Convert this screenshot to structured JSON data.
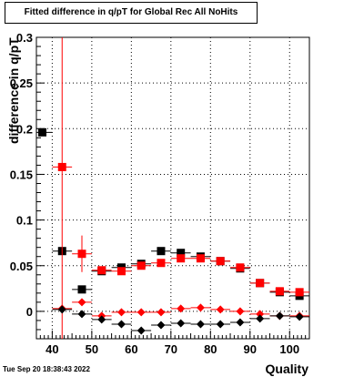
{
  "chart_data": {
    "type": "scatter",
    "title": "Fitted difference in q/pT for Global Rec All NoHits",
    "xlabel": "Quality",
    "ylabel": "difference in q/pT",
    "timestamp": "Tue Sep 20 18:38:43 2022",
    "xlim": [
      36,
      105
    ],
    "ylim": [
      -0.03,
      0.3
    ],
    "grid": true,
    "x_ticks": [
      40,
      50,
      60,
      70,
      80,
      90,
      100
    ],
    "x_tick_labels": [
      "40",
      "50",
      "60",
      "70",
      "80",
      "90",
      "100"
    ],
    "y_ticks": [
      0,
      0.05,
      0.1,
      0.15,
      0.2,
      0.25,
      0.3
    ],
    "y_tick_labels": [
      "0",
      "0.05",
      "0.1",
      "0.15",
      "0.2",
      "0.25",
      "0.3"
    ],
    "x_bin_half_width": 2.5,
    "series": [
      {
        "color": "#000000",
        "marker": "square",
        "points": [
          {
            "x": 37.5,
            "y": 0.196
          },
          {
            "x": 42.5,
            "y": 0.066
          },
          {
            "x": 47.5,
            "y": 0.024
          },
          {
            "x": 52.5,
            "y": 0.044
          },
          {
            "x": 57.5,
            "y": 0.048
          },
          {
            "x": 62.5,
            "y": 0.052
          },
          {
            "x": 67.5,
            "y": 0.066
          },
          {
            "x": 72.5,
            "y": 0.064
          },
          {
            "x": 77.5,
            "y": 0.06
          },
          {
            "x": 82.5,
            "y": 0.055
          },
          {
            "x": 87.5,
            "y": 0.047
          },
          {
            "x": 92.5,
            "y": 0.031
          },
          {
            "x": 97.5,
            "y": 0.021
          },
          {
            "x": 102.5,
            "y": 0.017
          }
        ]
      },
      {
        "color": "#ff0000",
        "marker": "square",
        "points": [
          {
            "x": 42.5,
            "y": 0.158,
            "err": 0.3
          },
          {
            "x": 47.5,
            "y": 0.063,
            "err": 0.02
          },
          {
            "x": 52.5,
            "y": 0.045
          },
          {
            "x": 57.5,
            "y": 0.044
          },
          {
            "x": 62.5,
            "y": 0.05
          },
          {
            "x": 67.5,
            "y": 0.053
          },
          {
            "x": 72.5,
            "y": 0.058
          },
          {
            "x": 77.5,
            "y": 0.058
          },
          {
            "x": 82.5,
            "y": 0.055
          },
          {
            "x": 87.5,
            "y": 0.048
          },
          {
            "x": 92.5,
            "y": 0.031
          },
          {
            "x": 97.5,
            "y": 0.022
          },
          {
            "x": 102.5,
            "y": 0.021
          }
        ]
      },
      {
        "color": "#ff0000",
        "marker": "diamond",
        "points": [
          {
            "x": 42.5,
            "y": 0.003
          },
          {
            "x": 47.5,
            "y": 0.01
          },
          {
            "x": 52.5,
            "y": -0.005
          },
          {
            "x": 57.5,
            "y": -0.001
          },
          {
            "x": 62.5,
            "y": -0.001
          },
          {
            "x": 67.5,
            "y": -0.001
          },
          {
            "x": 72.5,
            "y": 0.003
          },
          {
            "x": 77.5,
            "y": 0.004
          },
          {
            "x": 82.5,
            "y": 0.002
          },
          {
            "x": 87.5,
            "y": 0.0
          },
          {
            "x": 92.5,
            "y": -0.003
          },
          {
            "x": 97.5,
            "y": -0.005
          },
          {
            "x": 102.5,
            "y": -0.005
          }
        ]
      },
      {
        "color": "#000000",
        "marker": "diamond",
        "points": [
          {
            "x": 42.5,
            "y": 0.002
          },
          {
            "x": 47.5,
            "y": -0.003
          },
          {
            "x": 52.5,
            "y": -0.009
          },
          {
            "x": 57.5,
            "y": -0.014
          },
          {
            "x": 62.5,
            "y": -0.021
          },
          {
            "x": 67.5,
            "y": -0.015
          },
          {
            "x": 72.5,
            "y": -0.013
          },
          {
            "x": 77.5,
            "y": -0.014
          },
          {
            "x": 82.5,
            "y": -0.014
          },
          {
            "x": 87.5,
            "y": -0.012
          },
          {
            "x": 92.5,
            "y": -0.008
          },
          {
            "x": 97.5,
            "y": -0.005
          },
          {
            "x": 102.5,
            "y": -0.006
          }
        ]
      }
    ]
  }
}
